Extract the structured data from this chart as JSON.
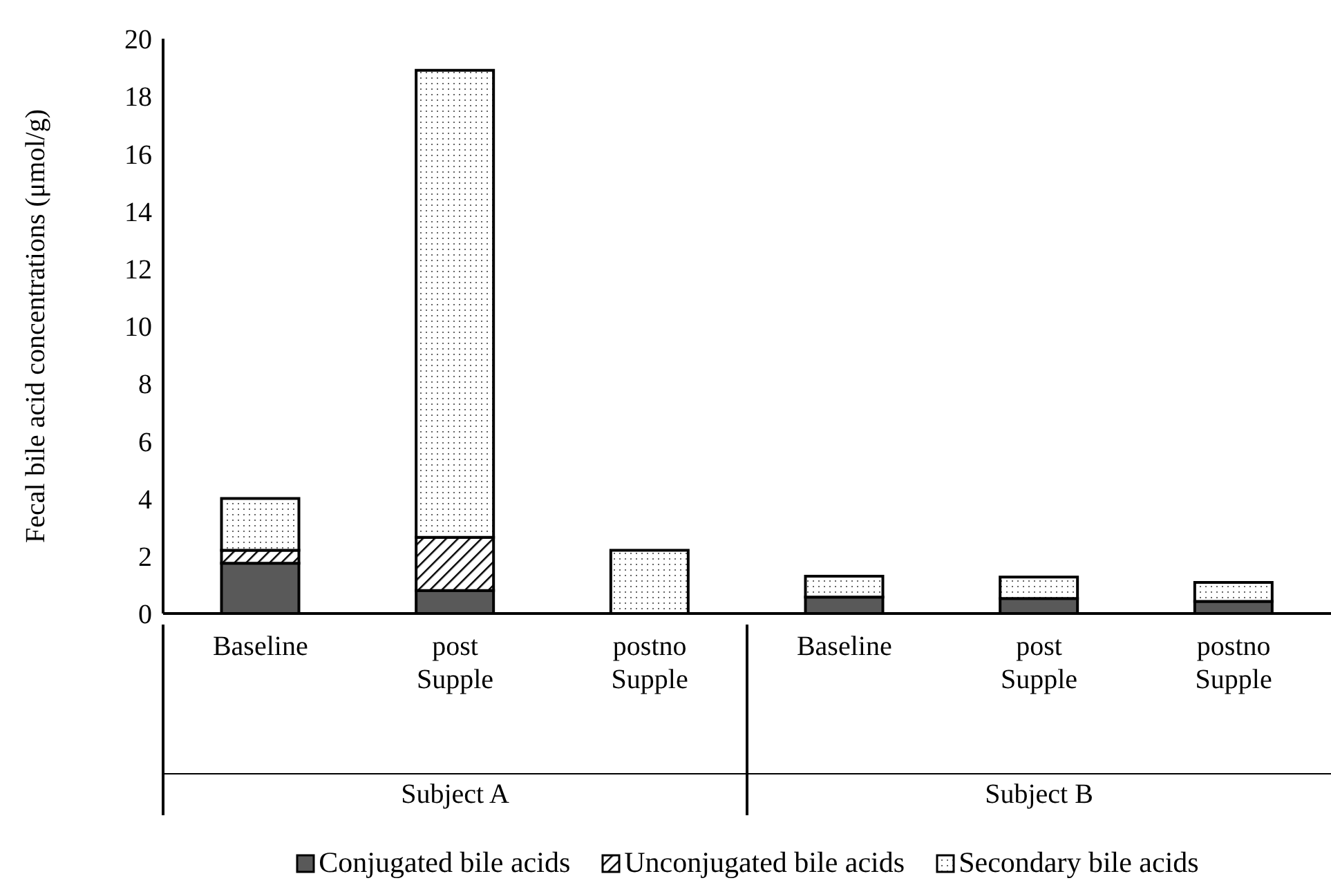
{
  "chart_data": {
    "type": "bar",
    "stacked": true,
    "ylabel": "Fecal bile acid concentrations (μmol/g)",
    "categories": [
      "Baseline",
      "post Supple",
      "postno Supple",
      "Baseline",
      "post Supple",
      "postno Supple"
    ],
    "series": [
      {
        "name": "Conjugated bile acids",
        "color": "#595959",
        "values": [
          1.75,
          0.8,
          null,
          0.57,
          0.52,
          0.42
        ]
      },
      {
        "name": "Unconjugated bile acids",
        "color": "#000000",
        "values": [
          0.45,
          1.85,
          0,
          0,
          0,
          0
        ]
      },
      {
        "name": "Secondary bile acids",
        "color": "#000000",
        "values": [
          1.8,
          16.25,
          2.2,
          0.73,
          0.75,
          0.66
        ]
      }
    ],
    "annotations": [
      "Subject A",
      "Subject B"
    ],
    "ylim": [
      0,
      20
    ],
    "yticks": [
      0,
      2,
      4,
      6,
      8,
      10,
      12,
      14,
      16,
      18,
      20
    ],
    "grid": false,
    "legend": "bottom"
  }
}
